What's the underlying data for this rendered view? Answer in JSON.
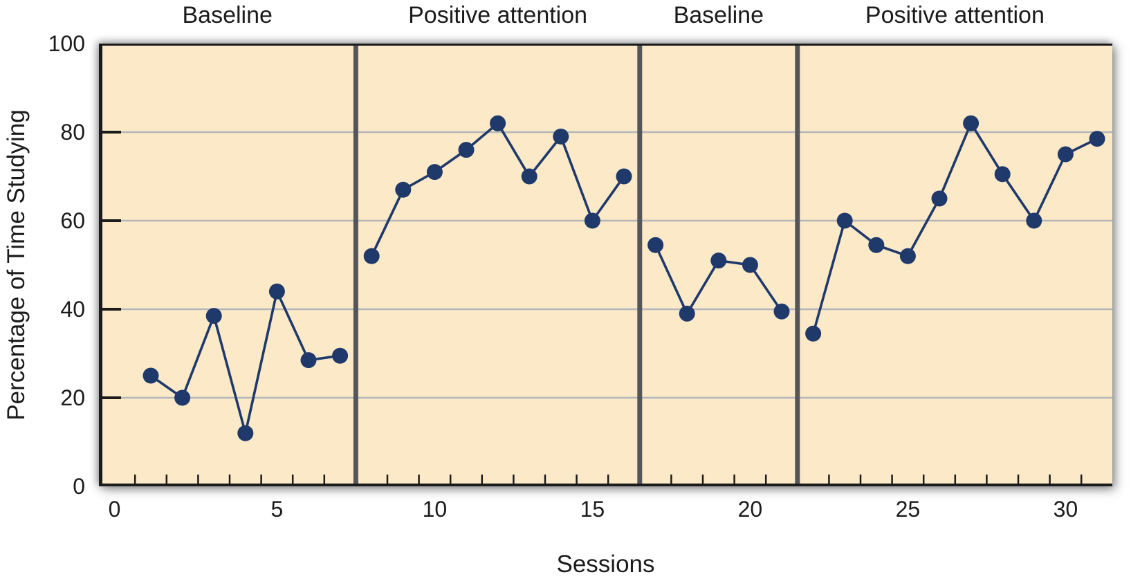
{
  "figure": {
    "x_axis_title": "Sessions",
    "y_axis_title": "Percentage of Time Studying"
  },
  "chart_data": {
    "type": "line",
    "title": "",
    "xlabel": "Sessions",
    "ylabel": "Percentage of Time Studying",
    "x": [
      1,
      2,
      3,
      4,
      5,
      6,
      7,
      8,
      9,
      10,
      11,
      12,
      13,
      14,
      15,
      16,
      17,
      18,
      19,
      20,
      21,
      22,
      23,
      24,
      25,
      26,
      27,
      28,
      29,
      30,
      31
    ],
    "series": [
      {
        "name": "Percentage of time studying",
        "values": [
          25,
          20,
          38.5,
          12,
          44,
          28.5,
          29.5,
          52,
          67,
          71,
          76,
          82,
          70,
          79,
          60,
          70,
          54.5,
          39,
          51,
          50,
          39.5,
          34.5,
          60,
          54.5,
          52,
          65,
          82,
          70.5,
          60,
          75,
          78.5
        ]
      }
    ],
    "ylim": [
      0,
      100
    ],
    "y_ticks": [
      0,
      20,
      40,
      60,
      80,
      100
    ],
    "x_tick_labels": [
      0,
      5,
      10,
      15,
      20,
      25,
      30
    ],
    "grid_y": [
      20,
      40,
      60,
      80
    ],
    "grid": "horizontal-only",
    "legend": "none",
    "phases": [
      {
        "label": "Baseline",
        "start_session": 1,
        "end_session": 7
      },
      {
        "label": "Positive attention",
        "start_session": 8,
        "end_session": 16
      },
      {
        "label": "Baseline",
        "start_session": 17,
        "end_session": 21
      },
      {
        "label": "Positive attention",
        "start_session": 22,
        "end_session": 31
      }
    ],
    "phase_dividers_at_sessions": [
      7.5,
      16.5,
      21.5
    ],
    "line_breaks_between_phases": true,
    "colors": {
      "plot_background": "#FBE9C8",
      "page_background": "#FFFFFF",
      "line": "#1F396B",
      "point": "#1F396B",
      "gridline": "#B4B6B8",
      "phase_divider": "#54565A",
      "axis": "#1B1B1B",
      "text": "#1B1B1B"
    }
  }
}
